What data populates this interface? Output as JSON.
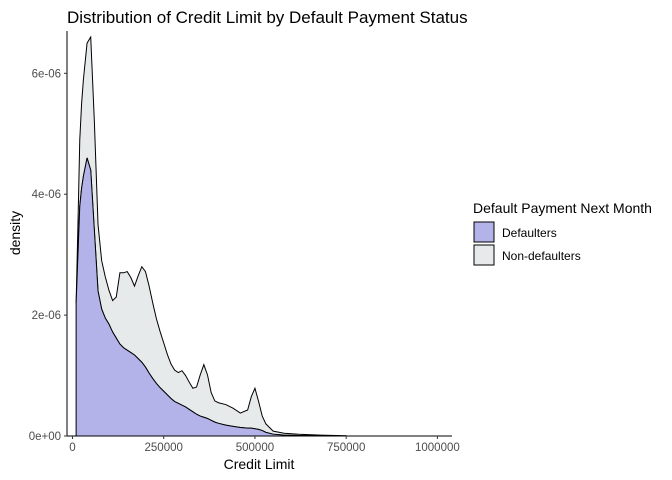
{
  "chart_data": {
    "type": "area",
    "title": "Distribution of Credit Limit by Default Payment Status",
    "xlabel": "Credit Limit",
    "ylabel": "density",
    "xlim": [
      -15000,
      1040000
    ],
    "ylim": [
      0,
      6.7e-06
    ],
    "x_ticks": [
      0,
      250000,
      500000,
      750000,
      1000000
    ],
    "x_tick_labels": [
      "0",
      "250000",
      "500000",
      "750000",
      "1000000"
    ],
    "y_ticks": [
      0,
      2e-06,
      4e-06,
      6e-06
    ],
    "y_tick_labels": [
      "0e+00",
      "2e-06",
      "4e-06",
      "6e-06"
    ],
    "grid": false,
    "stacked": true,
    "legend": {
      "title": "Default Payment Next Month",
      "position": "right",
      "entries": [
        {
          "label": "Defaulters",
          "color": "#b3b3ea"
        },
        {
          "label": "Non-defaulters",
          "color": "#e6eaeb"
        }
      ]
    },
    "series": [
      {
        "name": "Defaulters",
        "color": "#b3b3ea",
        "x": [
          10000,
          15000,
          20000,
          25000,
          30000,
          40000,
          50000,
          60000,
          70000,
          80000,
          90000,
          100000,
          110000,
          120000,
          130000,
          140000,
          150000,
          160000,
          170000,
          180000,
          190000,
          200000,
          210000,
          220000,
          230000,
          240000,
          250000,
          260000,
          270000,
          280000,
          290000,
          300000,
          310000,
          320000,
          330000,
          340000,
          350000,
          360000,
          370000,
          380000,
          390000,
          400000,
          420000,
          440000,
          460000,
          480000,
          490000,
          500000,
          510000,
          520000,
          530000,
          550000,
          580000,
          620000,
          680000,
          750000
        ],
        "values": [
          2.2e-06,
          3e-06,
          3.8e-06,
          4.1e-06,
          4.3e-06,
          4.6e-06,
          4.4e-06,
          3.4e-06,
          2.4e-06,
          2.1e-06,
          1.95e-06,
          1.85e-06,
          1.72e-06,
          1.62e-06,
          1.52e-06,
          1.46e-06,
          1.42e-06,
          1.38e-06,
          1.34e-06,
          1.28e-06,
          1.22e-06,
          1.14e-06,
          1.04e-06,
          9.5e-07,
          8.7e-07,
          8e-07,
          7.4e-07,
          6.8e-07,
          6.2e-07,
          5.7e-07,
          5.4e-07,
          5.1e-07,
          4.8e-07,
          4.4e-07,
          4e-07,
          3.6e-07,
          3.3e-07,
          3.1e-07,
          2.9e-07,
          2.6e-07,
          2.3e-07,
          2.1e-07,
          1.8e-07,
          1.6e-07,
          1.4e-07,
          1.3e-07,
          1.3e-07,
          1.2e-07,
          1.1e-07,
          9e-08,
          6e-08,
          3e-08,
          1.5e-08,
          8e-09,
          3e-09,
          0
        ]
      },
      {
        "name": "Non-defaulters",
        "color": "#e6eaeb",
        "x": [
          10000,
          15000,
          20000,
          25000,
          30000,
          40000,
          50000,
          60000,
          70000,
          80000,
          90000,
          100000,
          110000,
          120000,
          130000,
          140000,
          150000,
          160000,
          170000,
          180000,
          190000,
          200000,
          210000,
          220000,
          230000,
          240000,
          250000,
          260000,
          270000,
          280000,
          290000,
          300000,
          310000,
          320000,
          330000,
          340000,
          350000,
          360000,
          370000,
          380000,
          390000,
          400000,
          420000,
          440000,
          460000,
          480000,
          490000,
          500000,
          510000,
          520000,
          530000,
          550000,
          580000,
          620000,
          680000,
          750000
        ],
        "values": [
          0,
          5e-07,
          1.1e-06,
          1.4e-06,
          1.6e-06,
          1.9e-06,
          2.2e-06,
          1.8e-06,
          1.1e-06,
          8e-07,
          6.8e-07,
          5.6e-07,
          5.2e-07,
          6.8e-07,
          1.18e-06,
          1.24e-06,
          1.3e-06,
          1.24e-06,
          1.14e-06,
          1.37e-06,
          1.58e-06,
          1.58e-06,
          1.44e-06,
          1.25e-06,
          1.07e-06,
          9.3e-07,
          8e-07,
          6.7e-07,
          5.7e-07,
          5.2e-07,
          5.1e-07,
          5.7e-07,
          5.2e-07,
          4.5e-07,
          3.9e-07,
          4.5e-07,
          6.8e-07,
          8.7e-07,
          7.2e-07,
          4.6e-07,
          3.5e-07,
          3.4e-07,
          3.4e-07,
          3e-07,
          2.4e-07,
          3e-07,
          5.2e-07,
          6.7e-07,
          4.6e-07,
          2.4e-07,
          1.4e-07,
          5e-08,
          3e-08,
          2e-08,
          1.2e-08,
          5e-09
        ]
      }
    ]
  }
}
